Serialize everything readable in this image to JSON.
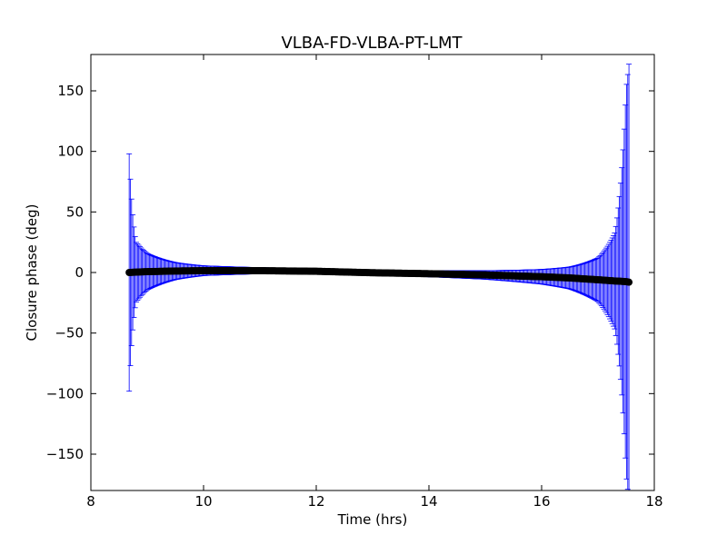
{
  "chart_data": {
    "type": "scatter",
    "title": "VLBA-FD-VLBA-PT-LMT",
    "xlabel": "Time (hrs)",
    "ylabel": "Closure phase (deg)",
    "xlim": [
      8,
      18
    ],
    "ylim": [
      -180,
      180
    ],
    "x_ticks": [
      8,
      10,
      12,
      14,
      16,
      18
    ],
    "y_ticks": [
      -150,
      -100,
      -50,
      0,
      50,
      100,
      150
    ],
    "x_tick_labels": [
      "8",
      "10",
      "12",
      "14",
      "16",
      "18"
    ],
    "y_tick_labels": [
      "−150",
      "−100",
      "−50",
      "0",
      "50",
      "100",
      "150"
    ],
    "grid": false,
    "legend": "none",
    "marker_color": "#000000",
    "errorbar_color": "#0000ff",
    "series": [
      {
        "x_start": 8.68,
        "x_end": 17.55,
        "n_points": 420,
        "values_description_points": [
          {
            "x": 8.68,
            "y": 0.0,
            "err": 98
          },
          {
            "x": 8.8,
            "y": 0.3,
            "err": 25
          },
          {
            "x": 9.0,
            "y": 0.7,
            "err": 15
          },
          {
            "x": 9.5,
            "y": 1.2,
            "err": 7
          },
          {
            "x": 10.0,
            "y": 1.5,
            "err": 4
          },
          {
            "x": 11.0,
            "y": 1.5,
            "err": 2.5
          },
          {
            "x": 12.0,
            "y": 1.0,
            "err": 2
          },
          {
            "x": 13.0,
            "y": -0.2,
            "err": 2
          },
          {
            "x": 14.0,
            "y": -1.0,
            "err": 2.5
          },
          {
            "x": 15.0,
            "y": -2.0,
            "err": 3.5
          },
          {
            "x": 16.0,
            "y": -3.5,
            "err": 6
          },
          {
            "x": 16.5,
            "y": -4.5,
            "err": 9
          },
          {
            "x": 17.0,
            "y": -6.0,
            "err": 18
          },
          {
            "x": 17.3,
            "y": -7.0,
            "err": 40
          },
          {
            "x": 17.5,
            "y": -7.5,
            "err": 160
          },
          {
            "x": 17.55,
            "y": -8.0,
            "err": 180
          }
        ]
      }
    ]
  }
}
